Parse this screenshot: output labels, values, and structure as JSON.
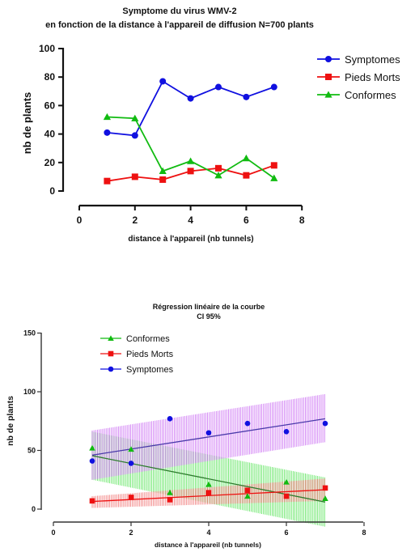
{
  "chart_data": [
    {
      "type": "line",
      "title": "Symptome du virus WMV-2",
      "subtitle": "en fonction de la distance à l'appareil de diffusion N=700 plants",
      "xlabel": "distance à l'appareil (nb tunnels)",
      "ylabel": "nb de plants",
      "xlim": [
        0,
        8
      ],
      "ylim": [
        0,
        100
      ],
      "xticks": [
        "0",
        "2",
        "4",
        "6",
        "8"
      ],
      "yticks": [
        "0",
        "20",
        "40",
        "60",
        "80",
        "100"
      ],
      "legend_position": "top-right",
      "grid": false,
      "x": [
        1,
        2,
        3,
        4,
        5,
        6,
        7
      ],
      "series": [
        {
          "name": "Symptomes",
          "color": "#1010e0",
          "marker": "circle",
          "values": [
            41,
            39,
            77,
            65,
            73,
            66,
            73
          ]
        },
        {
          "name": "Pieds Morts",
          "color": "#ee1111",
          "marker": "square",
          "values": [
            7,
            10,
            8,
            14,
            16,
            11,
            18
          ]
        },
        {
          "name": "Conformes",
          "color": "#11bb11",
          "marker": "triangle",
          "values": [
            52,
            51,
            14,
            21,
            11,
            23,
            9
          ]
        }
      ]
    },
    {
      "type": "scatter",
      "title": "Régression linéaire de la courbe",
      "subtitle": "CI 95%",
      "xlabel": "distance à l'appareil (nb tunnels)",
      "ylabel": "nb de plants",
      "xlim": [
        0,
        8
      ],
      "ylim": [
        0,
        150
      ],
      "xticks": [
        "0",
        "2",
        "4",
        "6",
        "8"
      ],
      "yticks": [
        "0",
        "50",
        "100",
        "150"
      ],
      "legend_position": "top-left",
      "grid": false,
      "x": [
        1,
        2,
        3,
        4,
        5,
        6,
        7
      ],
      "series": [
        {
          "name": "Conformes",
          "color": "#11bb11",
          "band_color": "#33dd33",
          "line_color": "#2e7d2e",
          "marker": "triangle",
          "values": [
            52,
            51,
            14,
            21,
            11,
            23,
            9
          ],
          "fit": {
            "start": 45.5,
            "end": 6
          },
          "ci_lower": {
            "start": 25,
            "end": -15
          },
          "ci_upper": {
            "start": 66,
            "end": 27
          }
        },
        {
          "name": "Pieds Morts",
          "color": "#ee1111",
          "band_color": "#ee5555",
          "line_color": "#ee1111",
          "marker": "square",
          "values": [
            7,
            10,
            8,
            14,
            16,
            11,
            18
          ],
          "fit": {
            "start": 6.5,
            "end": 16.5
          },
          "ci_lower": {
            "start": 1,
            "end": 7
          },
          "ci_upper": {
            "start": 11,
            "end": 26
          }
        },
        {
          "name": "Symptomes",
          "color": "#1010e0",
          "band_color": "#c050f0",
          "line_color": "#4a3aaa",
          "marker": "circle",
          "values": [
            41,
            39,
            77,
            65,
            73,
            66,
            73
          ],
          "fit": {
            "start": 46,
            "end": 77
          },
          "ci_lower": {
            "start": 25,
            "end": 57
          },
          "ci_upper": {
            "start": 67,
            "end": 98
          }
        }
      ]
    }
  ]
}
